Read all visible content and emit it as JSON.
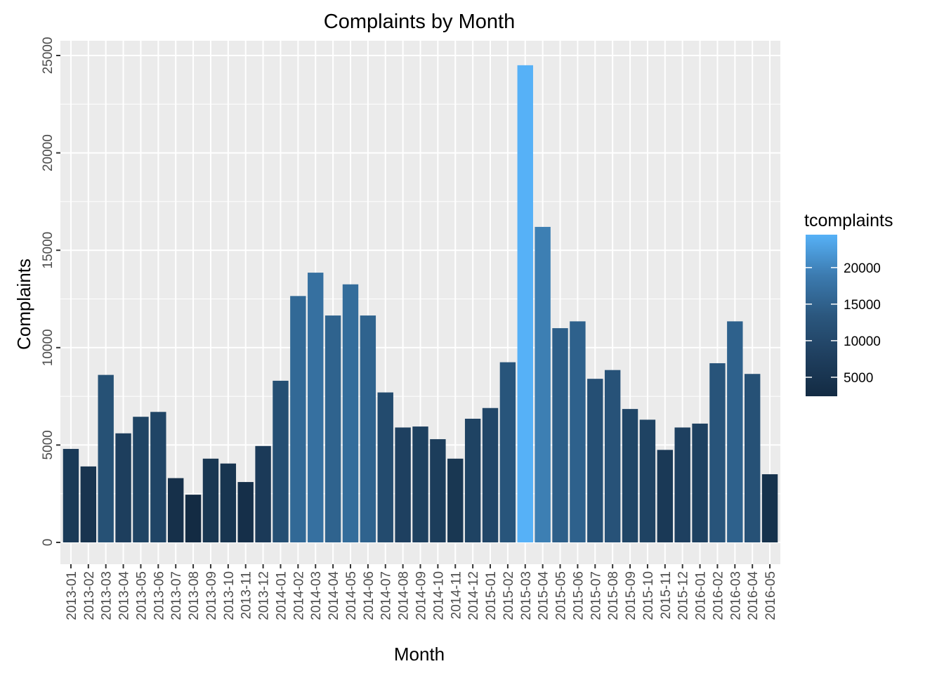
{
  "chart_data": {
    "type": "bar",
    "title": "Complaints by Month",
    "xlabel": "Month",
    "ylabel": "Complaints",
    "ylim": [
      -1300,
      25600
    ],
    "yticks": [
      0,
      5000,
      10000,
      15000,
      20000,
      25000
    ],
    "grid": true,
    "legend": {
      "title": "tcomplaints",
      "position": "right",
      "type": "colorbar",
      "range": [
        2400,
        24500
      ],
      "ticks": [
        5000,
        10000,
        15000,
        20000
      ],
      "low_color": "#132B43",
      "high_color": "#56B1F7"
    },
    "categories": [
      "2013-01",
      "2013-02",
      "2013-03",
      "2013-04",
      "2013-05",
      "2013-06",
      "2013-07",
      "2013-08",
      "2013-09",
      "2013-10",
      "2013-11",
      "2013-12",
      "2014-01",
      "2014-02",
      "2014-03",
      "2014-04",
      "2014-05",
      "2014-06",
      "2014-07",
      "2014-08",
      "2014-09",
      "2014-10",
      "2014-11",
      "2014-12",
      "2015-01",
      "2015-02",
      "2015-03",
      "2015-04",
      "2015-05",
      "2015-06",
      "2015-07",
      "2015-08",
      "2015-09",
      "2015-10",
      "2015-11",
      "2015-12",
      "2016-01",
      "2016-02",
      "2016-03",
      "2016-04",
      "2016-05"
    ],
    "values": [
      4800,
      3900,
      8600,
      5600,
      6450,
      6700,
      3300,
      2450,
      4300,
      4050,
      3100,
      4950,
      8300,
      12650,
      13850,
      11650,
      13250,
      11650,
      7700,
      5900,
      5950,
      5300,
      4300,
      6350,
      6900,
      9250,
      24500,
      16200,
      11000,
      11350,
      8400,
      8850,
      6850,
      6300,
      4750,
      5900,
      6100,
      9200,
      11350,
      8650,
      3500
    ]
  }
}
